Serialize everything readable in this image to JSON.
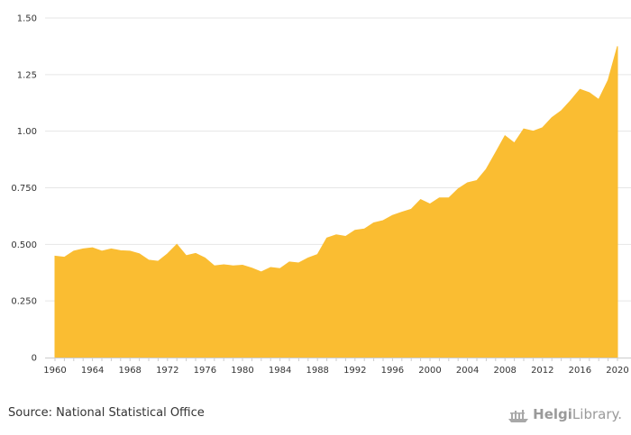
{
  "chart_data": {
    "type": "area",
    "x": [
      1960,
      1961,
      1962,
      1963,
      1964,
      1965,
      1966,
      1967,
      1968,
      1969,
      1970,
      1971,
      1972,
      1973,
      1974,
      1975,
      1976,
      1977,
      1978,
      1979,
      1980,
      1981,
      1982,
      1983,
      1984,
      1985,
      1986,
      1987,
      1988,
      1989,
      1990,
      1991,
      1992,
      1993,
      1994,
      1995,
      1996,
      1997,
      1998,
      1999,
      2000,
      2001,
      2002,
      2003,
      2004,
      2005,
      2006,
      2007,
      2008,
      2009,
      2010,
      2011,
      2012,
      2013,
      2014,
      2015,
      2016,
      2017,
      2018,
      2019,
      2020
    ],
    "series": [
      {
        "values": [
          0.448,
          0.443,
          0.47,
          0.48,
          0.485,
          0.47,
          0.48,
          0.472,
          0.47,
          0.458,
          0.43,
          0.425,
          0.458,
          0.5,
          0.45,
          0.46,
          0.44,
          0.405,
          0.41,
          0.405,
          0.408,
          0.395,
          0.378,
          0.398,
          0.393,
          0.422,
          0.418,
          0.44,
          0.455,
          0.528,
          0.542,
          0.535,
          0.562,
          0.568,
          0.595,
          0.605,
          0.628,
          0.642,
          0.655,
          0.698,
          0.678,
          0.705,
          0.705,
          0.745,
          0.772,
          0.782,
          0.832,
          0.905,
          0.98,
          0.948,
          1.01,
          1.0,
          1.015,
          1.06,
          1.09,
          1.135,
          1.185,
          1.17,
          1.14,
          1.225,
          1.375
        ],
        "color": "#FABD32"
      }
    ],
    "xticks": [
      "1960",
      "1964",
      "1968",
      "1972",
      "1976",
      "1980",
      "1984",
      "1988",
      "1992",
      "1996",
      "2000",
      "2004",
      "2008",
      "2012",
      "2016",
      "2020"
    ],
    "yticks": [
      "0",
      "0.250",
      "0.500",
      "0.750",
      "1.00",
      "1.25",
      "1.50"
    ],
    "ylim": [
      0,
      1.5
    ],
    "xlim": [
      1960,
      2020
    ],
    "grid": true,
    "title": "",
    "xlabel": "",
    "ylabel": ""
  },
  "footer": {
    "source": "Source: National Statistical Office",
    "brand_part1": "Helgi",
    "brand_part2": "Library."
  },
  "icons": {
    "brand": "ship-logo-icon"
  }
}
